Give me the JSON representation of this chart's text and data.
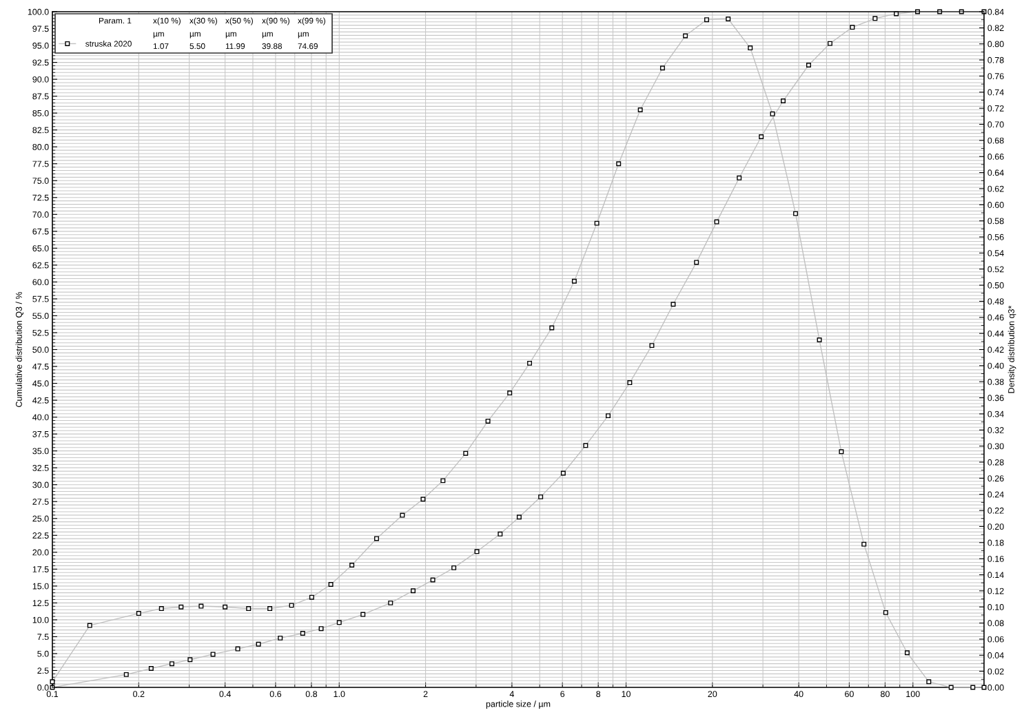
{
  "chart_data": {
    "type": "line",
    "xlabel": "particle size / µm",
    "ylabel": "Cumulative distribution Q3 / %",
    "y2label": "Density distribution q3*",
    "log": "x",
    "grid": true,
    "legend": "top left",
    "marker": "square",
    "line_style": "solid",
    "xlim": [
      0.1,
      177
    ],
    "xticks": [
      0.1,
      0.2,
      0.4,
      0.6,
      0.8,
      {
        "value": 1,
        "label": "1.0"
      },
      2,
      4,
      6,
      8,
      10,
      20,
      40,
      60,
      80,
      100
    ],
    "ylim": [
      0,
      100
    ],
    "yticks": [
      {
        "value": 0,
        "label": "0.0"
      },
      2.5,
      {
        "value": 5,
        "label": "5.0"
      },
      7.5,
      {
        "value": 10,
        "label": "10.0"
      },
      12.5,
      {
        "value": 15,
        "label": "15.0"
      },
      17.5,
      {
        "value": 20,
        "label": "20.0"
      },
      22.5,
      {
        "value": 25,
        "label": "25.0"
      },
      27.5,
      {
        "value": 30,
        "label": "30.0"
      },
      32.5,
      {
        "value": 35,
        "label": "35.0"
      },
      37.5,
      {
        "value": 40,
        "label": "40.0"
      },
      42.5,
      {
        "value": 45,
        "label": "45.0"
      },
      47.5,
      {
        "value": 50,
        "label": "50.0"
      },
      52.5,
      {
        "value": 55,
        "label": "55.0"
      },
      57.5,
      {
        "value": 60,
        "label": "60.0"
      },
      62.5,
      {
        "value": 65,
        "label": "65.0"
      },
      67.5,
      {
        "value": 70,
        "label": "70.0"
      },
      72.5,
      {
        "value": 75,
        "label": "75.0"
      },
      77.5,
      {
        "value": 80,
        "label": "80.0"
      },
      82.5,
      {
        "value": 85,
        "label": "85.0"
      },
      87.5,
      {
        "value": 90,
        "label": "90.0"
      },
      92.5,
      {
        "value": 95,
        "label": "95.0"
      },
      97.5,
      {
        "value": 100,
        "label": "100.0"
      }
    ],
    "y2lim": [
      0,
      0.84
    ],
    "y2ticks": [
      {
        "value": 0,
        "label": "0.00"
      },
      0.02,
      0.04,
      0.06,
      0.08,
      {
        "value": 0.1,
        "label": "0.10"
      },
      0.12,
      0.14,
      0.16,
      0.18,
      {
        "value": 0.2,
        "label": "0.20"
      },
      0.22,
      0.24,
      0.26,
      0.28,
      {
        "value": 0.3,
        "label": "0.30"
      },
      0.32,
      0.34,
      0.36,
      0.38,
      {
        "value": 0.4,
        "label": "0.40"
      },
      0.42,
      0.44,
      0.46,
      0.48,
      {
        "value": 0.5,
        "label": "0.50"
      },
      0.52,
      0.54,
      0.56,
      0.58,
      {
        "value": 0.6,
        "label": "0.60"
      },
      0.62,
      0.64,
      0.66,
      0.68,
      {
        "value": 0.7,
        "label": "0.70"
      },
      0.72,
      0.74,
      0.76,
      0.78,
      {
        "value": 0.8,
        "label": "0.80"
      },
      0.82,
      0.84
    ],
    "annotations": [
      "Param. 1",
      "x(10 %)",
      "x(30 %)",
      "x(50 %)",
      "x(90 %)",
      "x(99 %)",
      "µm",
      "µm",
      "µm",
      "µm",
      "µm",
      "1.07",
      "5.50",
      "11.99",
      "39.88",
      "74.69"
    ],
    "series": [
      {
        "name": "struska 2020",
        "color": "#c0c0c0",
        "x": [
          0.1,
          0.181,
          0.221,
          0.261,
          0.302,
          0.363,
          0.443,
          0.523,
          0.623,
          0.746,
          0.865,
          1.0,
          1.21,
          1.51,
          1.81,
          2.12,
          2.51,
          3.02,
          3.64,
          4.24,
          5.04,
          6.04,
          7.23,
          8.66,
          10.3,
          12.3,
          14.6,
          17.6,
          20.7,
          24.8,
          29.6,
          35.3,
          43.3,
          51.4,
          61.5,
          73.8,
          87.5,
          103.8,
          124,
          147.7,
          177
        ],
        "values": [
          0,
          1.9,
          2.8,
          3.5,
          4.1,
          4.9,
          5.7,
          6.4,
          7.3,
          8.0,
          8.7,
          9.6,
          10.8,
          12.5,
          14.3,
          15.9,
          17.7,
          20.1,
          22.7,
          25.2,
          28.2,
          31.7,
          35.8,
          40.2,
          45.1,
          50.6,
          56.7,
          62.9,
          68.9,
          75.4,
          81.5,
          86.8,
          92.1,
          95.3,
          97.7,
          99.0,
          99.7,
          100,
          100,
          100,
          100
        ]
      },
      {
        "axis": "y2",
        "color": "#c0c0c0",
        "x": [
          0.1,
          0.135,
          0.2,
          0.24,
          0.281,
          0.33,
          0.4,
          0.483,
          0.573,
          0.682,
          0.802,
          0.935,
          1.107,
          1.35,
          1.66,
          1.96,
          2.3,
          2.76,
          3.3,
          3.93,
          4.61,
          5.51,
          6.6,
          7.91,
          9.42,
          11.21,
          13.4,
          16.1,
          19.1,
          22.7,
          27.1,
          32.4,
          39.0,
          47.2,
          56.3,
          67.5,
          80.4,
          95.5,
          113.6,
          135.9,
          161.8,
          177
        ],
        "values": [
          0.007,
          0.077,
          0.092,
          0.098,
          0.1,
          0.101,
          0.1,
          0.098,
          0.098,
          0.102,
          0.112,
          0.128,
          0.152,
          0.185,
          0.214,
          0.234,
          0.257,
          0.291,
          0.331,
          0.366,
          0.403,
          0.447,
          0.505,
          0.577,
          0.651,
          0.718,
          0.77,
          0.81,
          0.83,
          0.831,
          0.795,
          0.713,
          0.589,
          0.432,
          0.293,
          0.178,
          0.093,
          0.043,
          0.007,
          0,
          0,
          0
        ]
      }
    ]
  }
}
